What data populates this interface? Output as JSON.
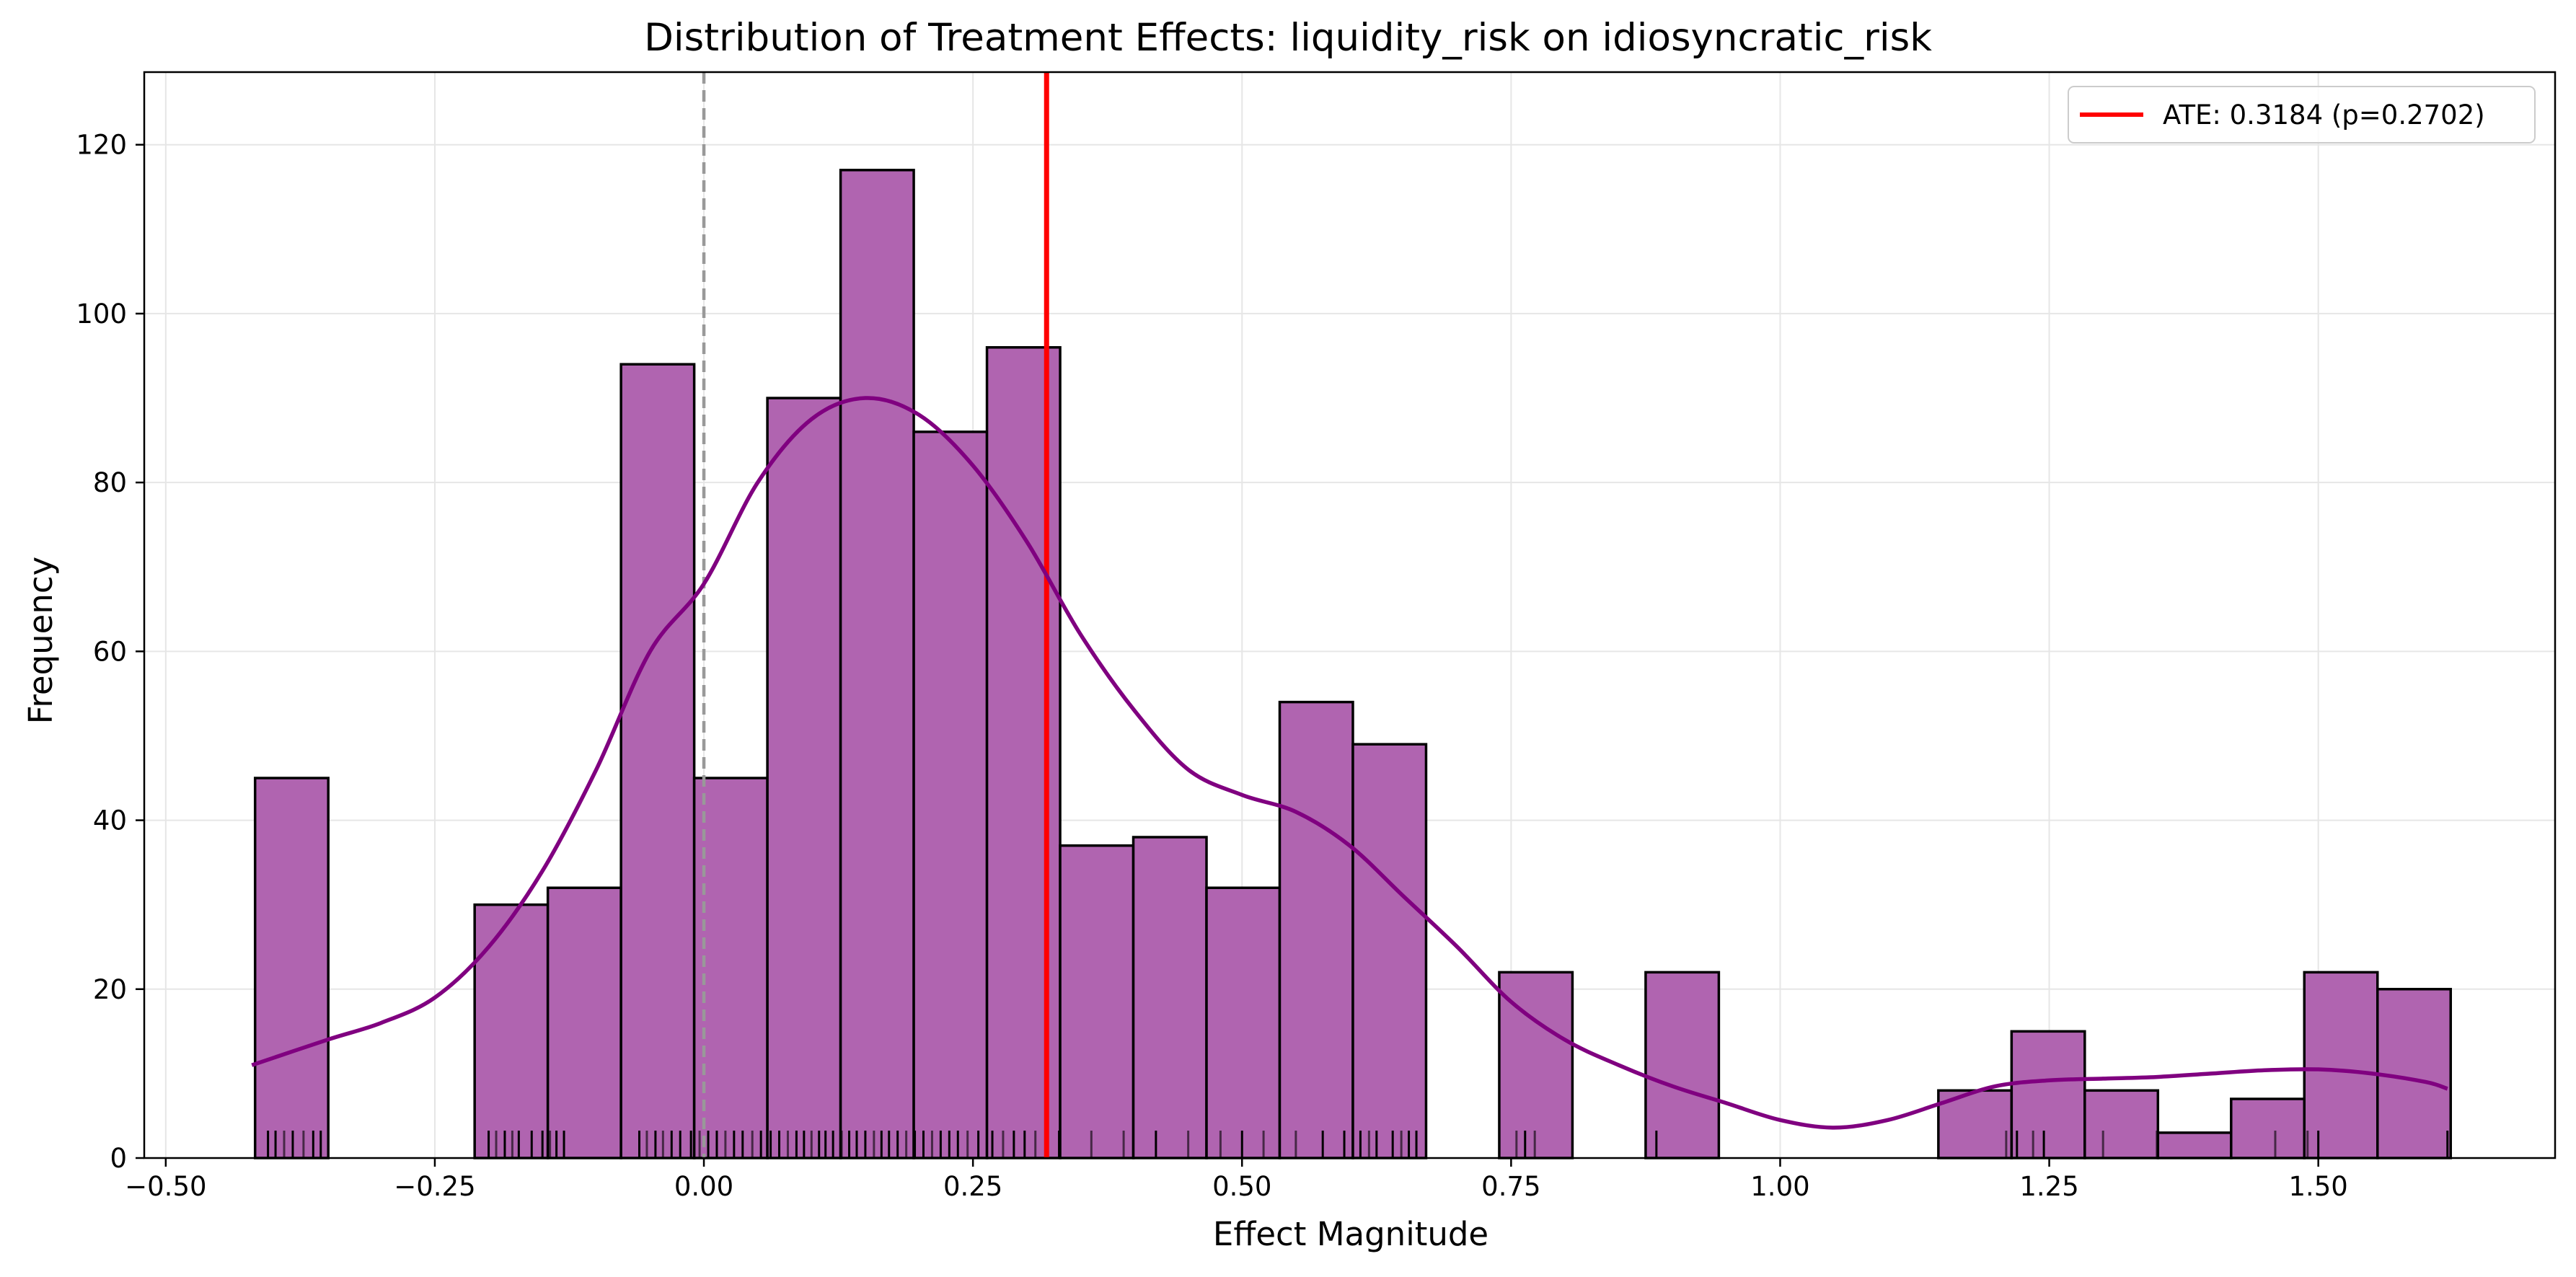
{
  "chart_data": {
    "type": "bar",
    "title": "Distribution of Treatment Effects: liquidity_risk on idiosyncratic_risk",
    "xlabel": "Effect Magnitude",
    "ylabel": "Frequency",
    "xlim": [
      -0.52,
      1.72
    ],
    "ylim": [
      0,
      128.6
    ],
    "xticks": [
      -0.5,
      -0.25,
      0.0,
      0.25,
      0.5,
      0.75,
      1.0,
      1.25,
      1.5
    ],
    "xtick_labels": [
      "−0.50",
      "−0.25",
      "0.00",
      "0.25",
      "0.50",
      "0.75",
      "1.00",
      "1.25",
      "1.50"
    ],
    "yticks": [
      0,
      20,
      40,
      60,
      80,
      100,
      120
    ],
    "ytick_labels": [
      "0",
      "20",
      "40",
      "60",
      "80",
      "100",
      "120"
    ],
    "grid": true,
    "bin_edges_start": -0.417,
    "bin_width": 0.068,
    "counts": [
      45,
      0,
      0,
      30,
      32,
      94,
      45,
      90,
      117,
      86,
      96,
      37,
      38,
      32,
      54,
      49,
      0,
      22,
      0,
      22,
      0,
      0,
      0,
      8,
      15,
      8,
      3,
      7,
      22,
      20
    ],
    "bar_color": "#b064b0",
    "bar_edge_color": "#000000",
    "kde": {
      "color": "#800080",
      "x": [
        -0.42,
        -0.35,
        -0.3,
        -0.25,
        -0.2,
        -0.15,
        -0.1,
        -0.05,
        0.0,
        0.05,
        0.1,
        0.15,
        0.2,
        0.25,
        0.3,
        0.35,
        0.4,
        0.45,
        0.5,
        0.55,
        0.6,
        0.65,
        0.7,
        0.75,
        0.8,
        0.85,
        0.9,
        0.95,
        1.0,
        1.05,
        1.1,
        1.15,
        1.2,
        1.25,
        1.3,
        1.35,
        1.4,
        1.45,
        1.5,
        1.55,
        1.6,
        1.62
      ],
      "y": [
        11,
        14,
        16,
        19,
        25,
        34,
        46,
        60,
        68,
        80,
        87.5,
        90,
        88,
        82,
        73,
        62,
        53,
        46,
        43,
        41,
        37,
        31,
        25,
        18.5,
        14,
        11,
        8.5,
        6.5,
        4.5,
        3.6,
        4.5,
        6.5,
        8.5,
        9.2,
        9.4,
        9.6,
        10,
        10.4,
        10.5,
        10,
        9,
        8.2
      ]
    },
    "ate": {
      "value": 0.3184,
      "p_value": 0.2702,
      "label": "ATE: 0.3184 (p=0.2702)",
      "color": "#ff0000"
    },
    "zero_line": {
      "value": 0.0,
      "color": "#999999",
      "style": "dashed"
    },
    "rug": {
      "color": "#000000",
      "x": [
        -0.405,
        -0.398,
        -0.39,
        -0.382,
        -0.372,
        -0.363,
        -0.356,
        -0.2,
        -0.193,
        -0.185,
        -0.178,
        -0.172,
        -0.16,
        -0.15,
        -0.143,
        -0.137,
        -0.13,
        -0.06,
        -0.053,
        -0.045,
        -0.038,
        -0.03,
        -0.022,
        -0.012,
        -0.004,
        0.004,
        0.012,
        0.02,
        0.028,
        0.036,
        0.045,
        0.053,
        0.062,
        0.07,
        0.078,
        0.086,
        0.093,
        0.1,
        0.107,
        0.113,
        0.12,
        0.128,
        0.135,
        0.142,
        0.15,
        0.158,
        0.165,
        0.172,
        0.18,
        0.188,
        0.196,
        0.204,
        0.212,
        0.22,
        0.228,
        0.236,
        0.245,
        0.255,
        0.268,
        0.278,
        0.288,
        0.298,
        0.308,
        0.318,
        0.33,
        0.36,
        0.39,
        0.42,
        0.45,
        0.48,
        0.5,
        0.52,
        0.55,
        0.575,
        0.595,
        0.61,
        0.618,
        0.625,
        0.64,
        0.648,
        0.655,
        0.662,
        0.755,
        0.763,
        0.772,
        0.885,
        1.21,
        1.22,
        1.235,
        1.245,
        1.3,
        1.35,
        1.46,
        1.49,
        1.5,
        1.62
      ],
      "opacity": [
        1,
        1,
        0.6,
        1,
        0.6,
        1,
        1,
        1,
        0.6,
        1,
        0.6,
        1,
        1,
        1,
        0.6,
        1,
        1,
        1,
        0.6,
        1,
        0.6,
        1,
        1,
        1,
        0.6,
        1,
        1,
        0.6,
        1,
        1,
        0.6,
        1,
        1,
        1,
        0.6,
        1,
        1,
        0.6,
        1,
        1,
        1,
        0.6,
        1,
        1,
        1,
        0.6,
        1,
        1,
        1,
        0.6,
        1,
        1,
        0.6,
        1,
        1,
        1,
        0.6,
        1,
        1,
        0.6,
        1,
        1,
        0.6,
        1,
        1,
        0.6,
        0.6,
        1,
        0.6,
        0.6,
        1,
        0.6,
        0.6,
        1,
        1,
        1,
        0.6,
        1,
        1,
        0.6,
        1,
        1,
        0.6,
        1,
        0.6,
        1,
        0.6,
        1,
        0.6,
        1,
        0.6,
        0.6,
        0.6,
        0.6,
        1,
        1
      ]
    },
    "legend": {
      "placement": "top-right",
      "entries": [
        "ATE: 0.3184 (p=0.2702)"
      ]
    }
  }
}
